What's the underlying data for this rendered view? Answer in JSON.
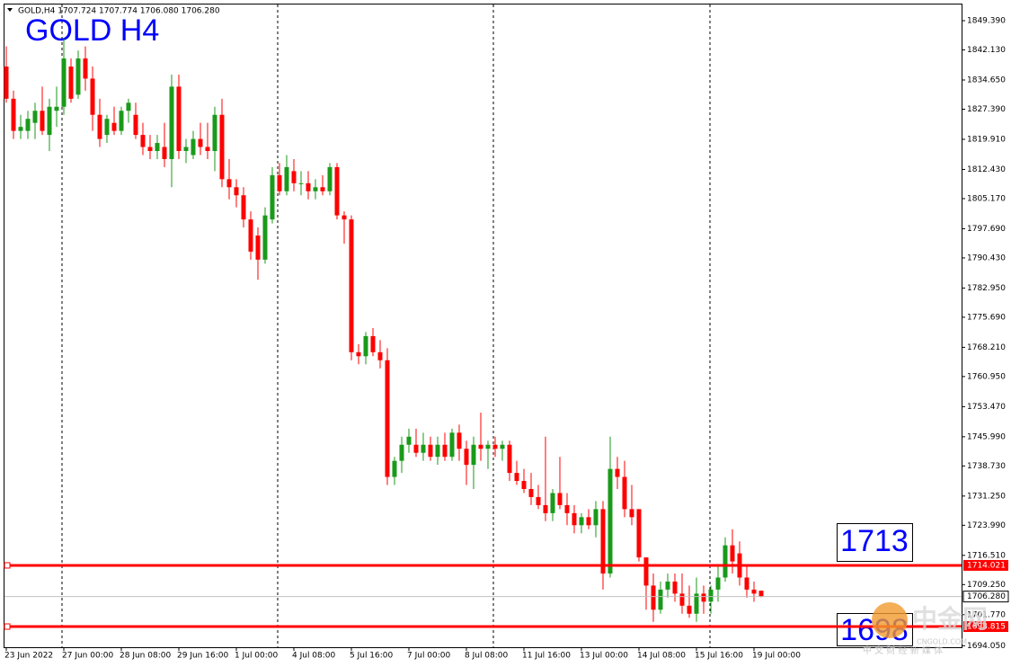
{
  "chart_data": {
    "type": "candlestick",
    "header": "GOLD,H4  1707.724 1707.774 1706.080 1706.280",
    "title": "GOLD H4",
    "up_color": "#1a9a1a",
    "down_color": "#ff0000",
    "categories": [
      "23 Jun 2022",
      null,
      null,
      null,
      null,
      null,
      null,
      null,
      "27 Jun 00:00",
      null,
      null,
      null,
      null,
      null,
      null,
      null,
      "28 Jun 08:00",
      null,
      null,
      null,
      null,
      null,
      null,
      null,
      "29 Jun 16:00",
      null,
      null,
      null,
      null,
      null,
      null,
      null,
      "1 Jul 00:00",
      null,
      null,
      null,
      null,
      null,
      null,
      null,
      "4 Jul 08:00",
      null,
      null,
      null,
      null,
      null,
      null,
      null,
      "5 Jul 16:00",
      null,
      null,
      null,
      null,
      null,
      null,
      null,
      "7 Jul 00:00",
      null,
      null,
      null,
      null,
      null,
      null,
      null,
      "8 Jul 08:00",
      null,
      null,
      null,
      null,
      null,
      null,
      null,
      "11 Jul 16:00",
      null,
      null,
      null,
      null,
      null,
      null,
      null,
      "13 Jul 00:00",
      null,
      null,
      null,
      null,
      null,
      null,
      null,
      "14 Jul 08:00",
      null,
      null,
      null,
      null,
      null,
      null,
      null,
      "15 Jul 16:00",
      null,
      null,
      null,
      null,
      null,
      null,
      null,
      "19 Jul 00:00",
      null
    ],
    "candles": [
      [
        1838,
        1843,
        1829,
        1830
      ],
      [
        1830,
        1832,
        1820,
        1822
      ],
      [
        1822,
        1826,
        1820,
        1823
      ],
      [
        1822,
        1827,
        1820,
        1825
      ],
      [
        1824,
        1829,
        1820,
        1827
      ],
      [
        1827,
        1833,
        1821,
        1822
      ],
      [
        1821,
        1830,
        1817,
        1828
      ],
      [
        1827,
        1833,
        1823,
        1828
      ],
      [
        1828,
        1845,
        1826,
        1840
      ],
      [
        1838,
        1840,
        1829,
        1830
      ],
      [
        1831,
        1842,
        1830,
        1840
      ],
      [
        1840,
        1843,
        1832,
        1835
      ],
      [
        1835,
        1838,
        1822,
        1826
      ],
      [
        1826,
        1830,
        1818,
        1820
      ],
      [
        1821,
        1826,
        1819,
        1825
      ],
      [
        1824,
        1828,
        1821,
        1822
      ],
      [
        1822,
        1828,
        1821,
        1827
      ],
      [
        1827,
        1830,
        1824,
        1829
      ],
      [
        1826,
        1829,
        1820,
        1821
      ],
      [
        1821,
        1824,
        1816,
        1818
      ],
      [
        1818,
        1821,
        1815,
        1817
      ],
      [
        1817,
        1821,
        1815,
        1819
      ],
      [
        1818,
        1824,
        1813,
        1815
      ],
      [
        1815,
        1836,
        1808,
        1833
      ],
      [
        1833,
        1836,
        1815,
        1817
      ],
      [
        1817,
        1820,
        1814,
        1818
      ],
      [
        1816,
        1822,
        1815,
        1820
      ],
      [
        1820,
        1824,
        1816,
        1818
      ],
      [
        1818,
        1824,
        1815,
        1817
      ],
      [
        1817,
        1828,
        1812,
        1826
      ],
      [
        1826,
        1830,
        1808,
        1810
      ],
      [
        1810,
        1815,
        1805,
        1808
      ],
      [
        1808,
        1810,
        1803,
        1806
      ],
      [
        1806,
        1808,
        1798,
        1800
      ],
      [
        1800,
        1802,
        1790,
        1792
      ],
      [
        1796,
        1798,
        1785,
        1790
      ],
      [
        1790,
        1803,
        1789,
        1801
      ],
      [
        1800,
        1813,
        1799,
        1811
      ],
      [
        1811,
        1814,
        1806,
        1807
      ],
      [
        1807,
        1816,
        1806,
        1813
      ],
      [
        1812,
        1815,
        1807,
        1809
      ],
      [
        1809,
        1812,
        1806,
        1809
      ],
      [
        1809,
        1812,
        1805,
        1807
      ],
      [
        1807,
        1810,
        1805,
        1808
      ],
      [
        1808,
        1811,
        1806,
        1807
      ],
      [
        1807,
        1814,
        1806,
        1813
      ],
      [
        1813,
        1814,
        1800,
        1801
      ],
      [
        1801,
        1802,
        1794,
        1800
      ],
      [
        1800,
        1801,
        1765,
        1767
      ],
      [
        1767,
        1769,
        1764,
        1766
      ],
      [
        1766,
        1772,
        1764,
        1771
      ],
      [
        1771,
        1773,
        1766,
        1767
      ],
      [
        1767,
        1770,
        1763,
        1765
      ],
      [
        1765,
        1768,
        1734,
        1736
      ],
      [
        1736,
        1741,
        1734,
        1740
      ],
      [
        1740,
        1746,
        1737,
        1744
      ],
      [
        1744,
        1748,
        1742,
        1746
      ],
      [
        1744,
        1748,
        1741,
        1742
      ],
      [
        1742,
        1747,
        1740,
        1744
      ],
      [
        1744,
        1746,
        1740,
        1741
      ],
      [
        1741,
        1746,
        1739,
        1744
      ],
      [
        1744,
        1747,
        1740,
        1741
      ],
      [
        1741,
        1748,
        1740,
        1747
      ],
      [
        1747,
        1749,
        1740,
        1743
      ],
      [
        1743,
        1745,
        1734,
        1739
      ],
      [
        1739,
        1746,
        1733,
        1744
      ],
      [
        1744,
        1752,
        1740,
        1743
      ],
      [
        1743,
        1745,
        1738,
        1744
      ],
      [
        1744,
        1746,
        1741,
        1743
      ],
      [
        1743,
        1745,
        1740,
        1744
      ],
      [
        1744,
        1745,
        1735,
        1737
      ],
      [
        1737,
        1740,
        1734,
        1735
      ],
      [
        1735,
        1738,
        1732,
        1733
      ],
      [
        1733,
        1737,
        1729,
        1731
      ],
      [
        1731,
        1734,
        1728,
        1729
      ],
      [
        1729,
        1746,
        1725,
        1727
      ],
      [
        1727,
        1733,
        1725,
        1732
      ],
      [
        1732,
        1741,
        1728,
        1729
      ],
      [
        1729,
        1732,
        1724,
        1727
      ],
      [
        1727,
        1729,
        1722,
        1724
      ],
      [
        1724,
        1727,
        1722,
        1726
      ],
      [
        1726,
        1728,
        1723,
        1724
      ],
      [
        1724,
        1730,
        1721,
        1728
      ],
      [
        1728,
        1730,
        1708,
        1712
      ],
      [
        1712,
        1746,
        1711,
        1738
      ],
      [
        1738,
        1741,
        1733,
        1736
      ],
      [
        1736,
        1740,
        1726,
        1728
      ],
      [
        1728,
        1734,
        1724,
        1726
      ],
      [
        1728,
        1728,
        1715,
        1716
      ],
      [
        1716,
        1716,
        1703,
        1709
      ],
      [
        1709,
        1712,
        1700,
        1703
      ],
      [
        1703,
        1710,
        1702,
        1708
      ],
      [
        1708,
        1712,
        1706,
        1710
      ],
      [
        1710,
        1712,
        1705,
        1707
      ],
      [
        1707,
        1712,
        1702,
        1704
      ],
      [
        1704,
        1709,
        1701,
        1702
      ],
      [
        1702,
        1711,
        1700,
        1707
      ],
      [
        1707,
        1709,
        1702,
        1705
      ],
      [
        1705,
        1709,
        1702,
        1708
      ],
      [
        1708,
        1714,
        1705,
        1711
      ],
      [
        1711,
        1721,
        1710,
        1719
      ],
      [
        1719,
        1723,
        1712,
        1715
      ],
      [
        1717,
        1720,
        1709,
        1711
      ],
      [
        1711,
        1714,
        1706,
        1708
      ],
      [
        1708,
        1710,
        1705,
        1707
      ],
      [
        1707.724,
        1707.774,
        1706.08,
        1706.28
      ]
    ],
    "ylim": [
      1693.68,
      1853.64
    ],
    "yticks": [
      {
        "value": 1849.39,
        "label": "1849.390"
      },
      {
        "value": 1842.13,
        "label": "1842.130"
      },
      {
        "value": 1834.65,
        "label": "1834.650"
      },
      {
        "value": 1827.39,
        "label": "1827.390"
      },
      {
        "value": 1819.91,
        "label": "1819.910"
      },
      {
        "value": 1812.43,
        "label": "1812.430"
      },
      {
        "value": 1805.17,
        "label": "1805.170"
      },
      {
        "value": 1797.69,
        "label": "1797.690"
      },
      {
        "value": 1790.43,
        "label": "1790.430"
      },
      {
        "value": 1782.95,
        "label": "1782.950"
      },
      {
        "value": 1775.69,
        "label": "1775.690"
      },
      {
        "value": 1768.21,
        "label": "1768.210"
      },
      {
        "value": 1760.95,
        "label": "1760.950"
      },
      {
        "value": 1753.47,
        "label": "1753.470"
      },
      {
        "value": 1745.99,
        "label": "1745.990"
      },
      {
        "value": 1738.73,
        "label": "1738.730"
      },
      {
        "value": 1731.25,
        "label": "1731.250"
      },
      {
        "value": 1723.99,
        "label": "1723.990"
      },
      {
        "value": 1716.51,
        "label": "1716.510"
      },
      {
        "value": 1709.25,
        "label": "1709.250"
      },
      {
        "value": 1701.77,
        "label": "1701.770"
      },
      {
        "value": 1694.05,
        "label": "1694.050"
      }
    ],
    "hlines": [
      {
        "value": 1714.021,
        "label": "1714.021",
        "color": "#ff0000"
      },
      {
        "value": 1698.815,
        "label": "1698.815",
        "color": "#ff0000"
      }
    ],
    "price_line": {
      "value": 1706.28,
      "label": "1706.280",
      "color": "#c0c0c0"
    },
    "annotations": [
      "1713",
      "1698"
    ],
    "watermark": {
      "logo": "中金网",
      "site": "CNGOLD.COM",
      "slogan": "中 文 财 经 新 媒 体"
    }
  }
}
